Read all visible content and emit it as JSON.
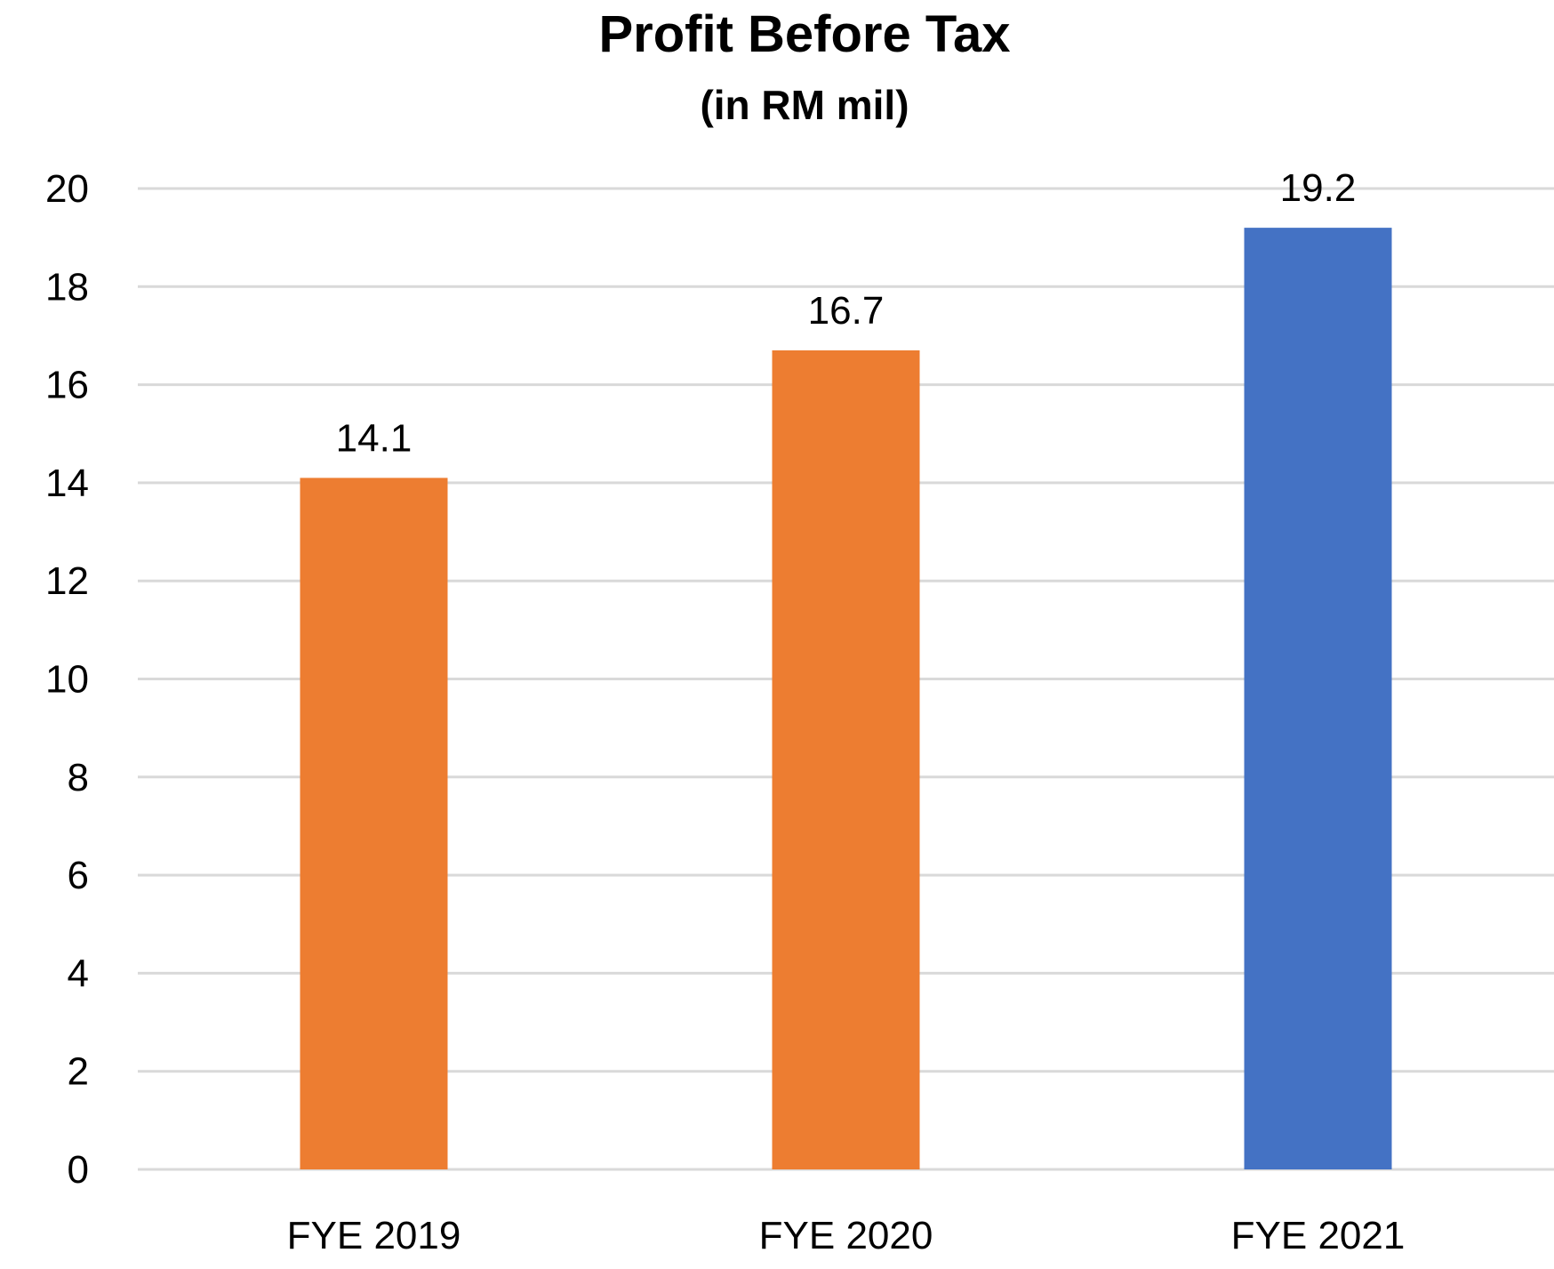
{
  "chart_data": {
    "type": "bar",
    "title": "Profit Before Tax",
    "subtitle": "(in RM mil)",
    "categories": [
      "FYE 2019",
      "FYE 2020",
      "FYE 2021"
    ],
    "values": [
      14.1,
      16.7,
      19.2
    ],
    "data_labels": [
      "14.1",
      "16.7",
      "19.2"
    ],
    "bar_colors": [
      "#ED7D31",
      "#ED7D31",
      "#4472C4"
    ],
    "ylim": [
      0,
      20
    ],
    "yticks": [
      "0",
      "2",
      "4",
      "6",
      "8",
      "10",
      "12",
      "14",
      "16",
      "18",
      "20"
    ],
    "grid": true,
    "gridline_color": "#D9D9D9",
    "legend": "none"
  }
}
